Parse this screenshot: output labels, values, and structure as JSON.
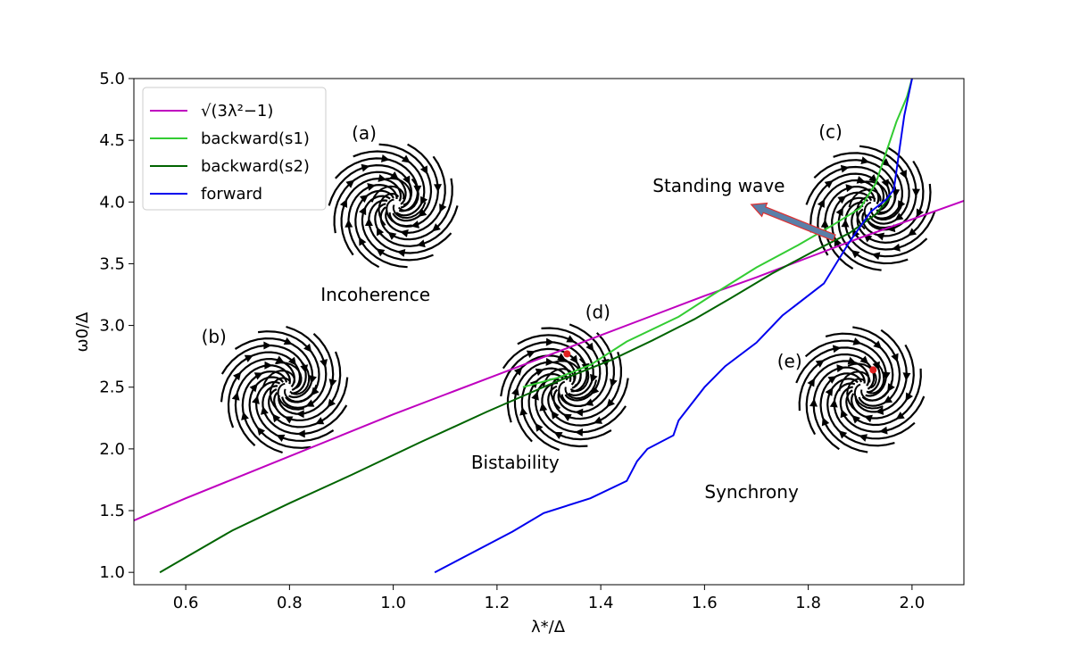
{
  "chart_data": {
    "type": "line",
    "title": "",
    "xlabel": "λ*/Δ",
    "ylabel": "ω0/Δ",
    "xlim": [
      0.5,
      2.1
    ],
    "ylim": [
      0.9,
      5.0
    ],
    "xticks": [
      0.6,
      0.8,
      1.0,
      1.2,
      1.4,
      1.6,
      1.8,
      2.0
    ],
    "xtick_labels": [
      "0.6",
      "0.8",
      "1.0",
      "1.2",
      "1.4",
      "1.6",
      "1.8",
      "2.0"
    ],
    "yticks": [
      1.0,
      1.5,
      2.0,
      2.5,
      3.0,
      3.5,
      4.0,
      4.5,
      5.0
    ],
    "ytick_labels": [
      "1.0",
      "1.5",
      "2.0",
      "2.5",
      "3.0",
      "3.5",
      "4.0",
      "4.5",
      "5.0"
    ],
    "grid": false,
    "legend_position": "upper-left",
    "series": [
      {
        "name": "√(3λ²−1)",
        "color": "#bf00bf",
        "x": [
          0.5,
          0.6,
          0.7,
          0.8,
          0.9,
          1.0,
          1.1,
          1.2,
          1.3,
          1.4,
          1.5,
          1.6,
          1.7,
          1.8,
          1.9,
          2.0,
          2.1
        ],
        "y": [
          1.42,
          1.6,
          1.77,
          1.94,
          2.11,
          2.28,
          2.44,
          2.6,
          2.76,
          2.92,
          3.08,
          3.24,
          3.39,
          3.55,
          3.71,
          3.86,
          4.01
        ]
      },
      {
        "name": "backward(s1)",
        "color": "#33cc33",
        "x": [
          1.25,
          1.32,
          1.38,
          1.45,
          1.55,
          1.62,
          1.7,
          1.78,
          1.85,
          1.9,
          1.93,
          1.95,
          1.97,
          1.99,
          2.0
        ],
        "y": [
          2.5,
          2.58,
          2.68,
          2.87,
          3.07,
          3.26,
          3.47,
          3.65,
          3.82,
          3.95,
          4.15,
          4.4,
          4.65,
          4.85,
          5.0
        ]
      },
      {
        "name": "backward(s2)",
        "color": "#006400",
        "x": [
          0.55,
          0.69,
          0.8,
          0.92,
          1.05,
          1.18,
          1.3,
          1.42,
          1.5,
          1.58,
          1.65,
          1.73,
          1.81,
          1.88,
          1.93,
          1.96
        ],
        "y": [
          1.0,
          1.34,
          1.56,
          1.79,
          2.05,
          2.3,
          2.52,
          2.72,
          2.88,
          3.05,
          3.22,
          3.42,
          3.6,
          3.75,
          3.9,
          4.05
        ]
      },
      {
        "name": "forward",
        "color": "#0000ee",
        "x": [
          1.08,
          1.23,
          1.29,
          1.38,
          1.45,
          1.47,
          1.49,
          1.54,
          1.55,
          1.6,
          1.64,
          1.7,
          1.75,
          1.83,
          1.88,
          1.92,
          1.95,
          1.965,
          1.975,
          1.985,
          2.0
        ],
        "y": [
          1.0,
          1.33,
          1.48,
          1.6,
          1.74,
          1.9,
          2.0,
          2.11,
          2.23,
          2.5,
          2.67,
          2.86,
          3.08,
          3.34,
          3.68,
          3.92,
          4.02,
          4.1,
          4.4,
          4.7,
          5.0
        ]
      }
    ],
    "region_labels": [
      {
        "text": "Incoherence",
        "x": 0.86,
        "y": 3.2
      },
      {
        "text": "Bistability",
        "x": 1.15,
        "y": 1.84
      },
      {
        "text": "Synchrony",
        "x": 1.6,
        "y": 1.6
      },
      {
        "text": "Standing wave",
        "x": 1.5,
        "y": 4.08
      }
    ],
    "panel_labels": [
      {
        "text": "(a)",
        "x": 0.92,
        "y": 4.51
      },
      {
        "text": "(b)",
        "x": 0.63,
        "y": 2.86
      },
      {
        "text": "(c)",
        "x": 1.82,
        "y": 4.52
      },
      {
        "text": "(d)",
        "x": 1.37,
        "y": 3.06
      },
      {
        "text": "(e)",
        "x": 1.74,
        "y": 2.66
      }
    ],
    "insets": [
      {
        "panel": "(a)",
        "cx": 1.0,
        "cy": 3.97,
        "fixed_point": false,
        "direction": 1
      },
      {
        "panel": "(b)",
        "cx": 0.79,
        "cy": 2.48,
        "fixed_point": false,
        "direction": 1
      },
      {
        "panel": "(c)",
        "cx": 1.92,
        "cy": 3.95,
        "fixed_point": false,
        "direction": 1
      },
      {
        "panel": "(d)",
        "cx": 1.33,
        "cy": 2.5,
        "fixed_point": true,
        "fp_x": 1.335,
        "fp_y": 2.77,
        "direction": 1
      },
      {
        "panel": "(e)",
        "cx": 1.9,
        "cy": 2.48,
        "fixed_point": true,
        "fp_x": 1.925,
        "fp_y": 2.64,
        "direction": 1
      }
    ],
    "arrow": {
      "from_x": 1.85,
      "from_y": 3.71,
      "to_x": 1.69,
      "to_y": 3.98,
      "fill": "#5b7fa8",
      "stroke": "#e03030"
    }
  }
}
